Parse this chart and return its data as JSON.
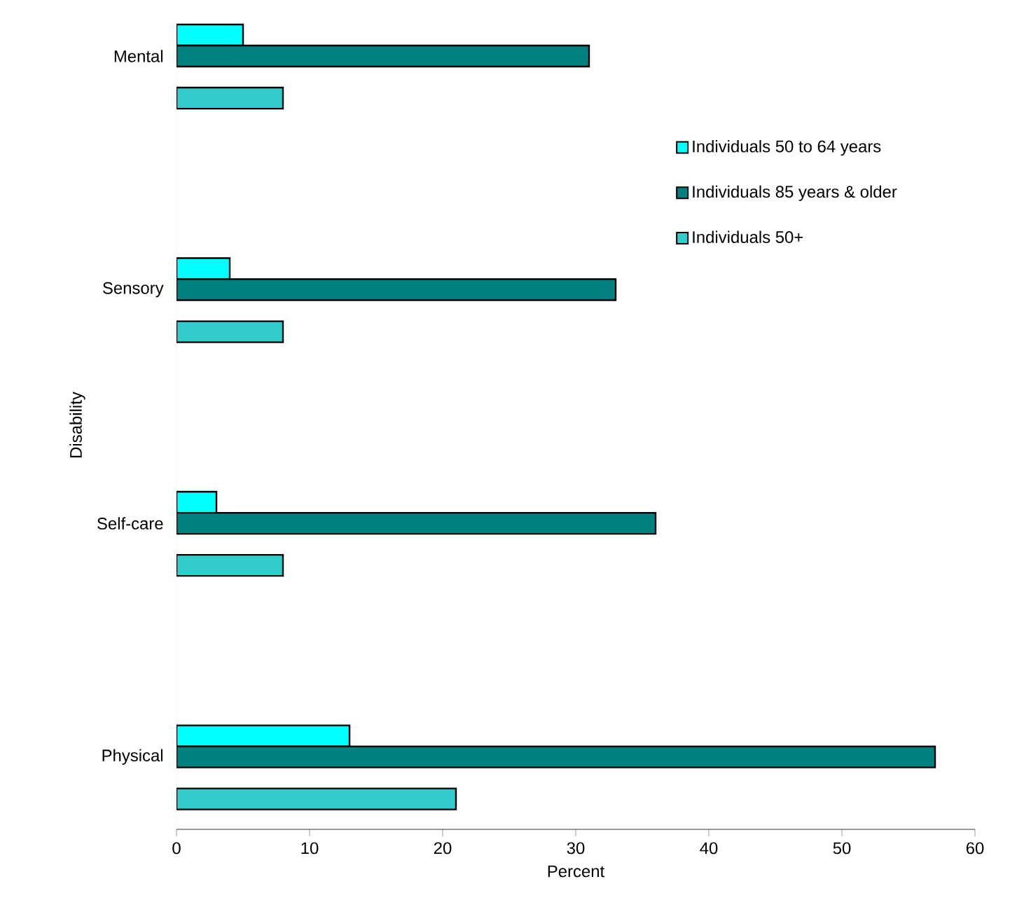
{
  "chart_data": {
    "type": "bar",
    "orientation": "horizontal",
    "xlabel": "Percent",
    "ylabel": "Disability",
    "categories": [
      "Mental",
      "Sensory",
      "Self-care",
      "Physical"
    ],
    "series": [
      {
        "name": "Individuals 50 to 64 years",
        "color": "#00ffff",
        "values": [
          5,
          4,
          3,
          13
        ]
      },
      {
        "name": "Individuals 85 years & older",
        "color": "#008080",
        "values": [
          31,
          33,
          36,
          57
        ]
      },
      {
        "name": "Individuals 50+",
        "color": "#33cccc",
        "values": [
          8,
          8,
          8,
          21
        ]
      }
    ],
    "xlim": [
      0,
      60
    ],
    "xticks": [
      0,
      10,
      20,
      30,
      40,
      50,
      60
    ],
    "grid": false,
    "legend": "right"
  }
}
